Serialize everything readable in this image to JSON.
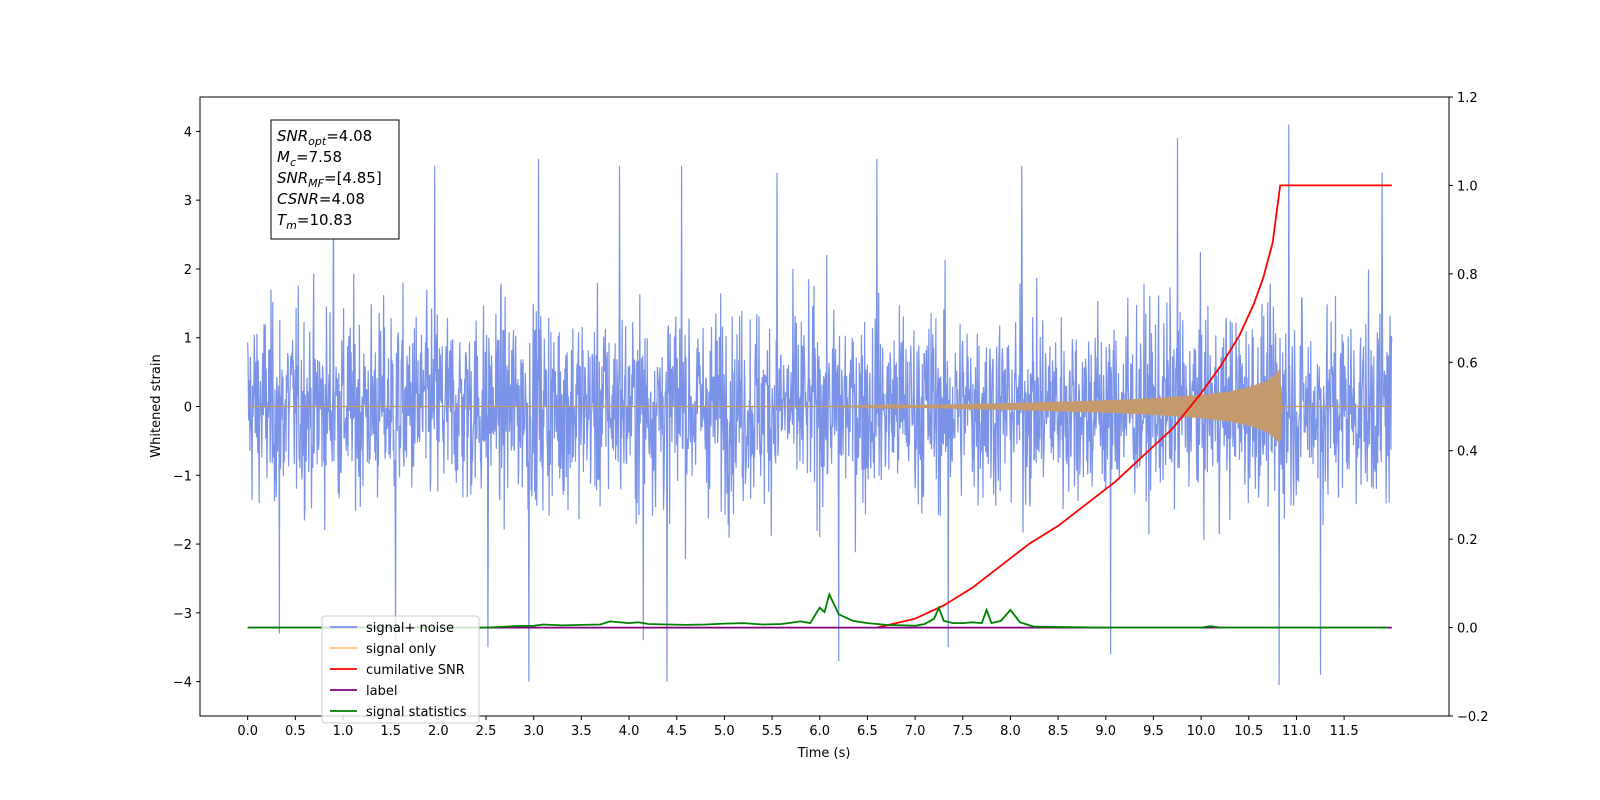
{
  "chart_data": {
    "type": "line",
    "xlabel": "Time (s)",
    "ylabel": "Whitened strain",
    "xlim": [
      -0.5,
      12.6
    ],
    "ylim": [
      -4.5,
      4.5
    ],
    "y2lim": [
      -0.2,
      1.2
    ],
    "x_ticks": [
      "0.0",
      "0.5",
      "1.0",
      "1.5",
      "2.0",
      "2.5",
      "3.0",
      "3.5",
      "4.0",
      "4.5",
      "5.0",
      "5.5",
      "6.0",
      "6.5",
      "7.0",
      "7.5",
      "8.0",
      "8.5",
      "9.0",
      "9.5",
      "10.0",
      "10.5",
      "11.0",
      "11.5"
    ],
    "y_ticks": [
      "−4",
      "−3",
      "−2",
      "−1",
      "0",
      "1",
      "2",
      "3",
      "4"
    ],
    "y2_ticks": [
      "−0.2",
      "0.0",
      "0.2",
      "0.4",
      "0.6",
      "0.8",
      "1.0",
      "1.2"
    ],
    "info_box": [
      {
        "base": "SNR",
        "sub": "opt",
        "value": "=4.08"
      },
      {
        "base": "M",
        "sub": "c",
        "value": "=7.58"
      },
      {
        "base": "SNR",
        "sub": "MF",
        "value": "=[4.85]"
      },
      {
        "base": "CSNR",
        "sub": "",
        "value": "=4.08"
      },
      {
        "base": "T",
        "sub": "m",
        "value": "=10.83"
      }
    ],
    "legend_location": "lower left",
    "legend": [
      {
        "label": "signal+ noise",
        "color": "#7a93e8"
      },
      {
        "label": "signal only",
        "color": "#ffc870"
      },
      {
        "label": "cumilative SNR",
        "color": "#ff0000"
      },
      {
        "label": "label",
        "color": "#800080"
      },
      {
        "label": "signal statistics",
        "color": "#008000"
      }
    ],
    "series": [
      {
        "name": "signal+ noise",
        "axis": "left",
        "color": "#7a93e8",
        "x_range": [
          0.0,
          12.0
        ],
        "typical_amplitude": 2.4,
        "spikes": [
          [
            0.33,
            -3.3
          ],
          [
            0.9,
            3.7
          ],
          [
            1.55,
            -3.4
          ],
          [
            1.96,
            3.5
          ],
          [
            2.52,
            -3.5
          ],
          [
            2.95,
            -4.0
          ],
          [
            3.05,
            3.6
          ],
          [
            3.9,
            3.5
          ],
          [
            4.15,
            -3.4
          ],
          [
            4.4,
            -4.0
          ],
          [
            4.55,
            3.5
          ],
          [
            5.55,
            3.4
          ],
          [
            6.2,
            -3.7
          ],
          [
            6.6,
            3.6
          ],
          [
            7.35,
            -3.5
          ],
          [
            8.12,
            3.5
          ],
          [
            9.05,
            -3.6
          ],
          [
            9.75,
            3.9
          ],
          [
            10.82,
            -4.05
          ],
          [
            10.92,
            4.1
          ],
          [
            11.25,
            -3.9
          ],
          [
            11.9,
            3.4
          ]
        ]
      },
      {
        "name": "signal only",
        "axis": "left",
        "color": "#c49a6c",
        "x": [
          0.0,
          6.0,
          7.0,
          8.0,
          9.0,
          9.5,
          10.0,
          10.3,
          10.5,
          10.7,
          10.8,
          10.83,
          10.85,
          12.0
        ],
        "envelope": [
          0.0,
          0.0,
          0.02,
          0.05,
          0.09,
          0.12,
          0.17,
          0.22,
          0.28,
          0.38,
          0.5,
          0.58,
          0.0,
          0.0
        ]
      },
      {
        "name": "cumilative SNR",
        "axis": "right",
        "color": "#ff0000",
        "x": [
          6.6,
          7.0,
          7.3,
          7.6,
          7.9,
          8.2,
          8.5,
          8.8,
          9.1,
          9.4,
          9.7,
          10.0,
          10.2,
          10.4,
          10.55,
          10.65,
          10.75,
          10.83,
          10.84,
          11.0,
          11.5,
          12.0
        ],
        "values": [
          0.0,
          0.02,
          0.05,
          0.09,
          0.14,
          0.19,
          0.23,
          0.28,
          0.33,
          0.39,
          0.45,
          0.53,
          0.59,
          0.66,
          0.73,
          0.79,
          0.87,
          1.0,
          1.0,
          1.0,
          1.0,
          1.0
        ]
      },
      {
        "name": "label",
        "axis": "right",
        "color": "#800080",
        "x": [
          0.0,
          12.0
        ],
        "values": [
          0.0,
          0.0
        ]
      },
      {
        "name": "signal statistics",
        "axis": "right",
        "color": "#008000",
        "x": [
          0.0,
          2.5,
          2.8,
          3.0,
          3.1,
          3.3,
          3.5,
          3.7,
          3.8,
          4.0,
          4.1,
          4.2,
          4.4,
          4.6,
          4.8,
          5.0,
          5.2,
          5.4,
          5.6,
          5.8,
          5.9,
          6.0,
          6.05,
          6.1,
          6.2,
          6.35,
          6.5,
          6.7,
          6.9,
          7.0,
          7.1,
          7.2,
          7.25,
          7.3,
          7.4,
          7.5,
          7.6,
          7.7,
          7.75,
          7.8,
          7.9,
          8.0,
          8.1,
          8.25,
          9.0,
          10.0,
          10.1,
          10.2,
          11.0,
          11.95
        ],
        "values": [
          0.0,
          0.0,
          0.003,
          0.004,
          0.007,
          0.005,
          0.006,
          0.007,
          0.014,
          0.01,
          0.012,
          0.008,
          0.007,
          0.006,
          0.007,
          0.009,
          0.01,
          0.007,
          0.008,
          0.014,
          0.01,
          0.045,
          0.035,
          0.075,
          0.03,
          0.015,
          0.01,
          0.006,
          0.005,
          0.004,
          0.008,
          0.02,
          0.045,
          0.015,
          0.01,
          0.01,
          0.012,
          0.01,
          0.04,
          0.01,
          0.015,
          0.04,
          0.012,
          0.002,
          0.0,
          0.0,
          0.003,
          0.0,
          0.0,
          0.0
        ]
      }
    ]
  }
}
